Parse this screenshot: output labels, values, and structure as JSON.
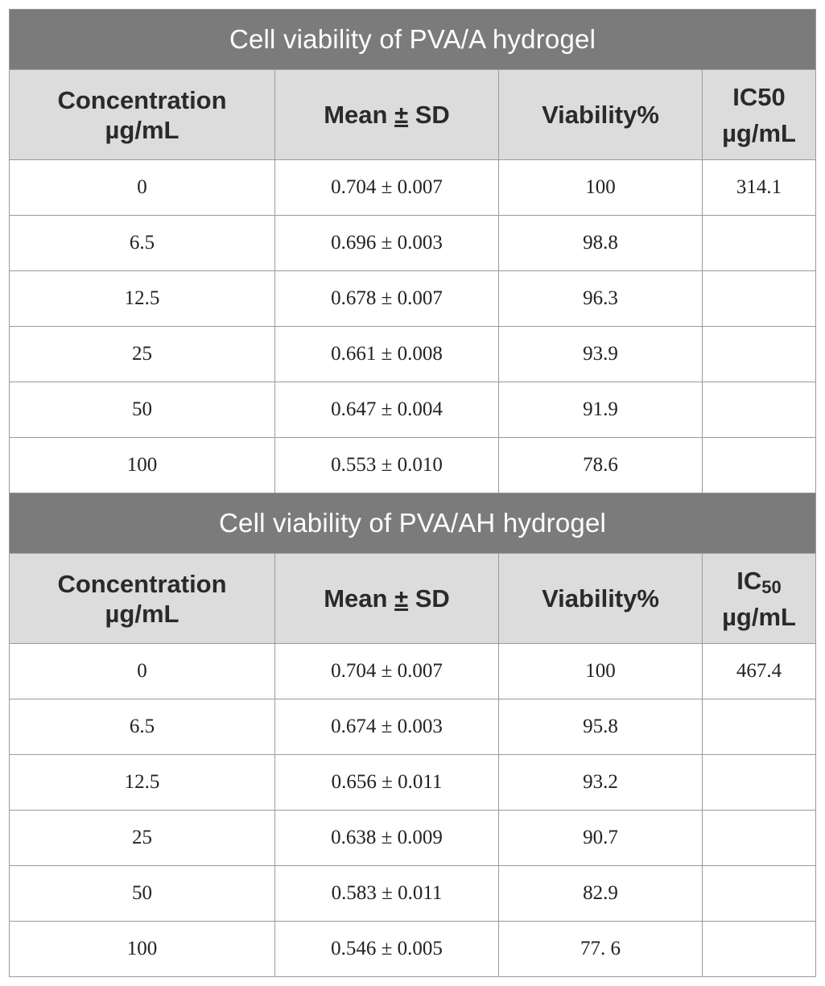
{
  "tables": [
    {
      "title": "Cell viability of PVA/A hydrogel",
      "headers": {
        "concentration_line1": "Concentration",
        "concentration_line2": "µg/mL",
        "mean_pre": "Mean ",
        "mean_pm": "±",
        "mean_post": " SD",
        "viability": "Viability%",
        "ic_base": "IC50",
        "ic_sub": "",
        "ic_unit": "µg/mL"
      },
      "ic50": "314.1",
      "rows": [
        {
          "concentration": "0",
          "mean_sd": "0.704 ± 0.007",
          "viability": "100"
        },
        {
          "concentration": "6.5",
          "mean_sd": "0.696 ± 0.003",
          "viability": "98.8"
        },
        {
          "concentration": "12.5",
          "mean_sd": "0.678 ± 0.007",
          "viability": "96.3"
        },
        {
          "concentration": "25",
          "mean_sd": "0.661 ± 0.008",
          "viability": "93.9"
        },
        {
          "concentration": "50",
          "mean_sd": "0.647 ± 0.004",
          "viability": "91.9"
        },
        {
          "concentration": "100",
          "mean_sd": "0.553 ± 0.010",
          "viability": "78.6"
        }
      ]
    },
    {
      "title": "Cell viability of PVA/AH hydrogel",
      "headers": {
        "concentration_line1": "Concentration",
        "concentration_line2": "µg/mL",
        "mean_pre": "Mean ",
        "mean_pm": "±",
        "mean_post": " SD",
        "viability": "Viability%",
        "ic_base": "IC",
        "ic_sub": "50",
        "ic_unit": "µg/mL"
      },
      "ic50": "467.4",
      "rows": [
        {
          "concentration": "0",
          "mean_sd": "0.704 ± 0.007",
          "viability": "100"
        },
        {
          "concentration": "6.5",
          "mean_sd": "0.674 ± 0.003",
          "viability": "95.8"
        },
        {
          "concentration": "12.5",
          "mean_sd": "0.656 ± 0.011",
          "viability": "93.2"
        },
        {
          "concentration": "25",
          "mean_sd": "0.638 ± 0.009",
          "viability": "90.7"
        },
        {
          "concentration": "50",
          "mean_sd": "0.583 ± 0.011",
          "viability": "82.9"
        },
        {
          "concentration": "100",
          "mean_sd": "0.546 ± 0.005",
          "viability": "77. 6"
        }
      ]
    }
  ],
  "colors": {
    "banner_background": "#7b7b7b",
    "banner_text": "#ffffff",
    "header_background": "#dcdcdc",
    "border": "#9a9a9a"
  }
}
